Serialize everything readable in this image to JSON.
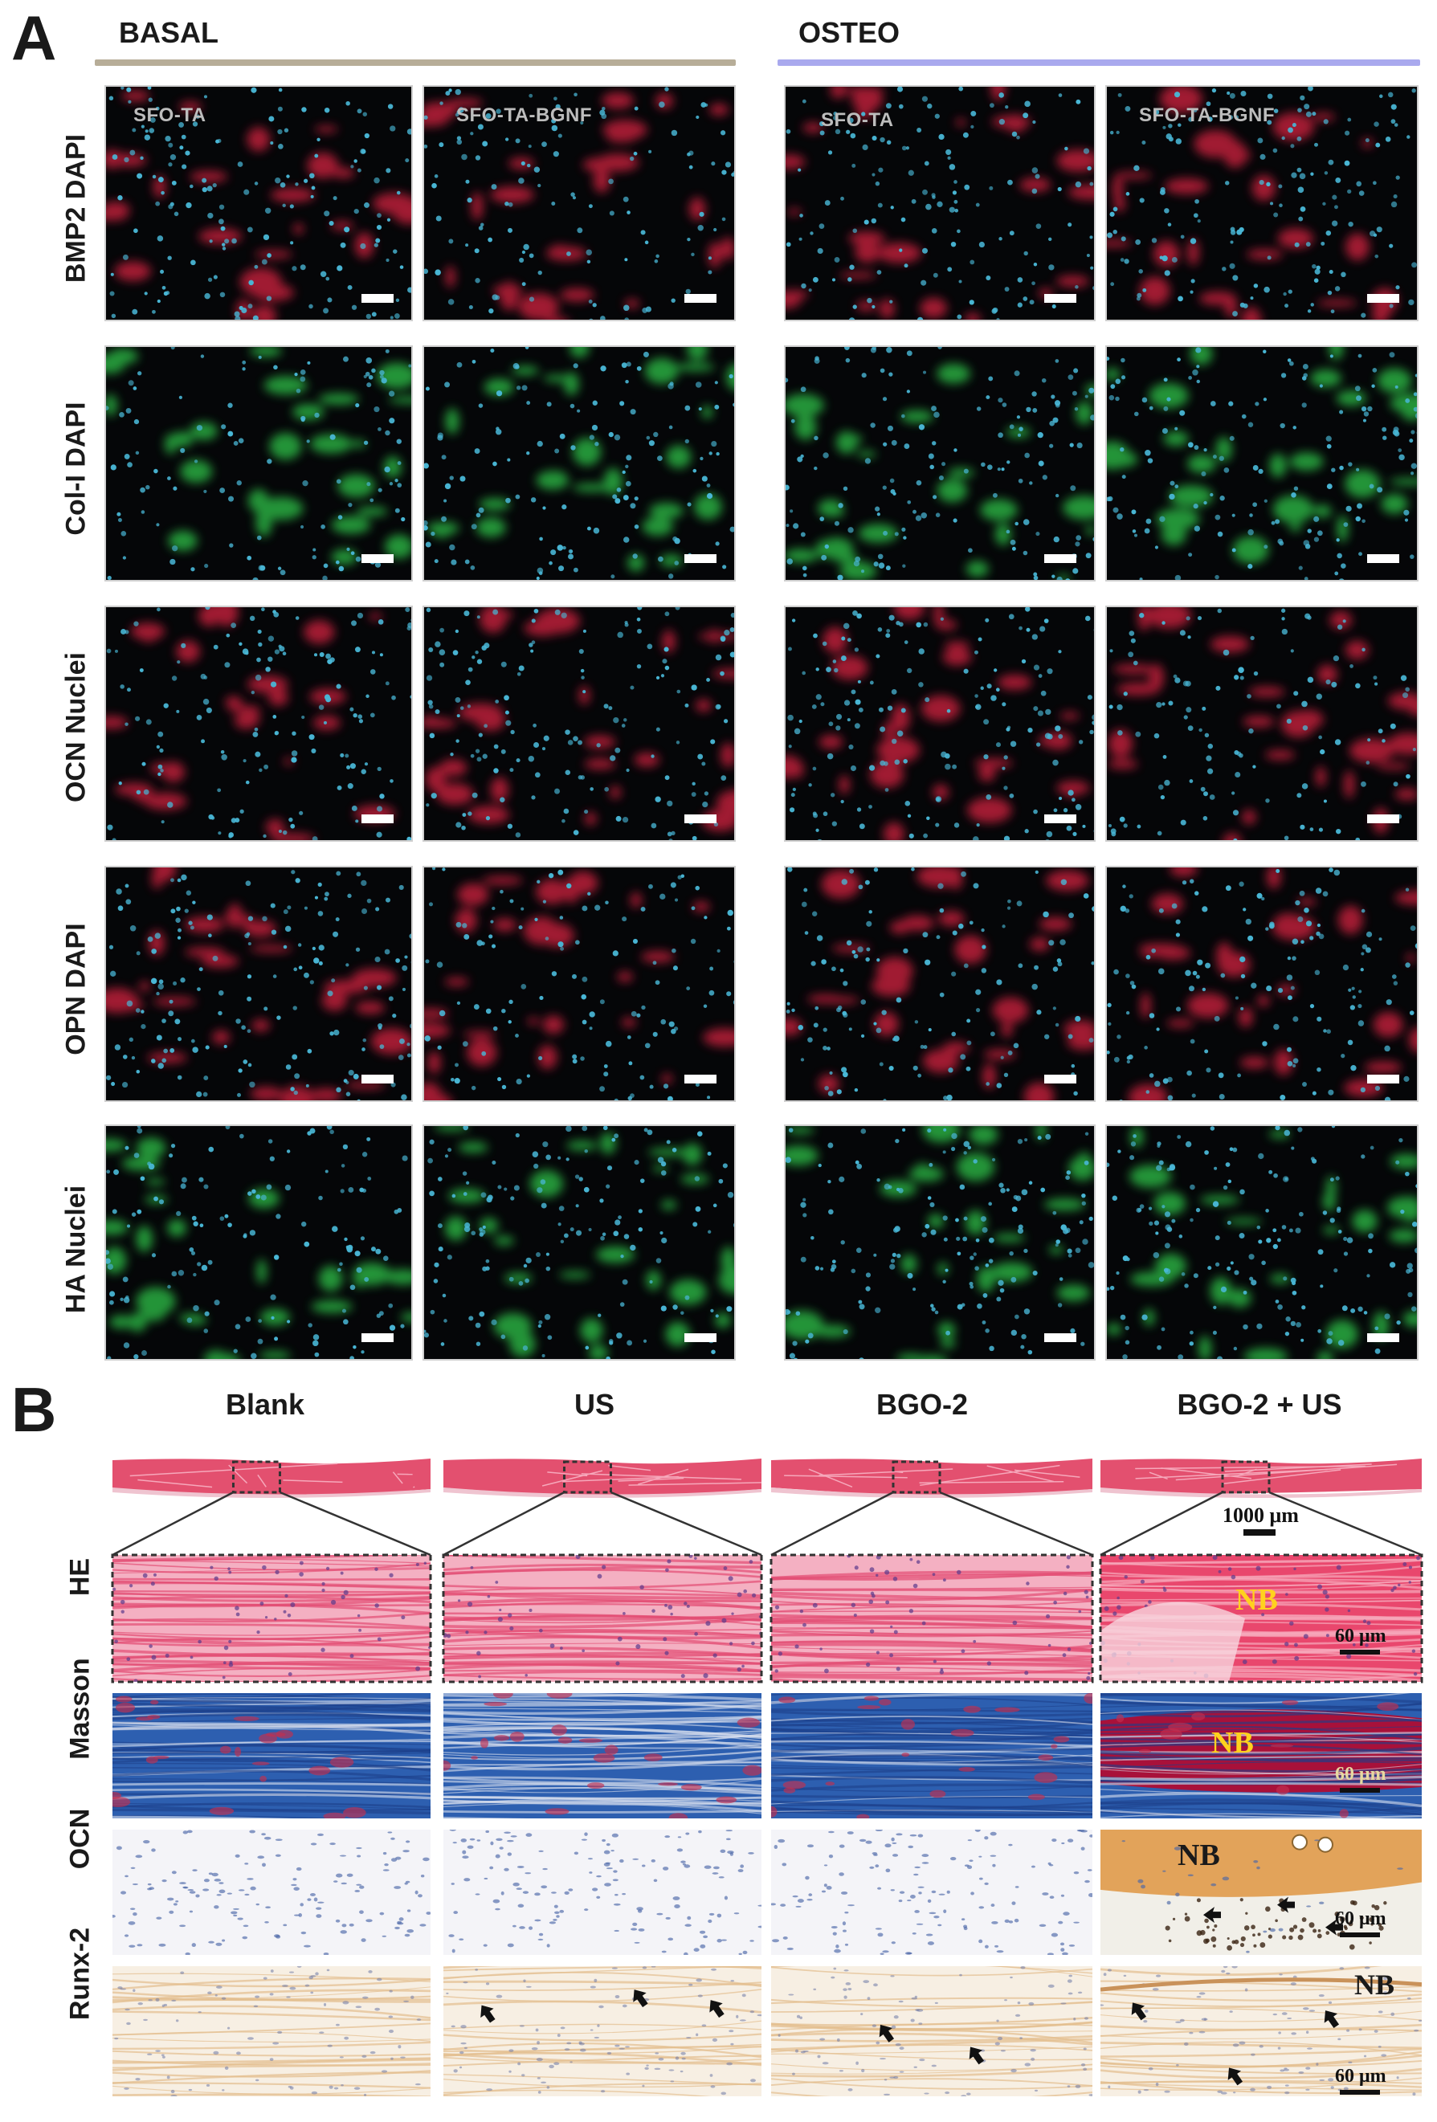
{
  "panel_a": {
    "letter": "A",
    "groups": [
      {
        "name": "BASAL",
        "line_color": "#b7ad98"
      },
      {
        "name": "OSTEO",
        "line_color": "#a9a9ee"
      }
    ],
    "rows": [
      "BMP2 DAPI",
      "Col-I DAPI",
      "OCN Nuclei",
      "OPN DAPI",
      "HA Nuclei"
    ],
    "condition_labels": [
      "SFO-TA",
      "SFO-TA-BGNF",
      "SFO-TA",
      "SFO-TA-BGNF"
    ],
    "marker_colors": {
      "red": "#d4213f",
      "green": "#2ec44a",
      "blue": "#49b7d6"
    }
  },
  "panel_b": {
    "letter": "B",
    "columns": [
      "Blank",
      "US",
      "BGO-2",
      "BGO-2 + US"
    ],
    "rows": [
      "HE",
      "Masson",
      "OCN",
      "Runx-2"
    ],
    "overview_scale": "1000 μm",
    "detail_scale": "60 μm",
    "nb_label": "NB"
  }
}
